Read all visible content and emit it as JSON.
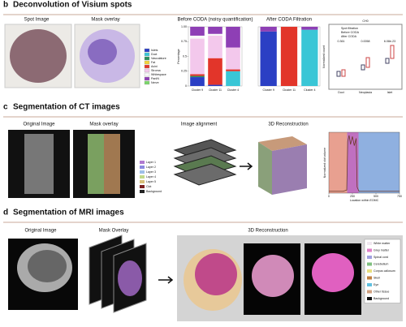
{
  "panels": [
    {
      "letter": "b",
      "title": "Deconvolution of Visium spots",
      "images": [
        "Spot Image",
        "Mask overlay"
      ]
    },
    {
      "letter": "c",
      "title": "Segmentation of CT images",
      "images": [
        "Original Image",
        "Mask overlay",
        "Image alignment",
        "3D Reconstruction"
      ],
      "legend": [
        "Layer 1",
        "Layer 2",
        "Layer 3",
        "Layer 4",
        "Layer 5",
        "Clot",
        "Background"
      ]
    },
    {
      "letter": "d",
      "title": "Segmentation of MRI images",
      "images": [
        "Original Image",
        "Mask Overlay",
        "3D Reconstruction"
      ],
      "legend": [
        "White matter",
        "Grey matter",
        "Spinal cord",
        "Cerebellum",
        "Corpus callosum",
        "Skull",
        "Eye",
        "Other tissue",
        "Background"
      ]
    }
  ],
  "boxplot": {
    "title": "CH0",
    "legend": [
      "Spot filtration",
      "Before CODA",
      "After CODA"
    ],
    "ylabel": "Normalized count",
    "categories": [
      "Duct",
      "Neoplasia",
      "Islet"
    ],
    "pvalues": [
      "0.361",
      "0.0058",
      "6.08e-23"
    ]
  },
  "chart_data": [
    {
      "type": "bar",
      "title": "Before CODA (noisy quantification)",
      "ylabel": "Percentage",
      "categories": [
        "Cluster 9",
        "Cluster 11",
        "Cluster 4"
      ],
      "ylim": [
        0,
        1
      ],
      "yticks": [
        0,
        0.25,
        {
          "value": 0.5,
          "label": "0.5"
        },
        0.75,
        {
          "value": 1,
          "label": "1.00"
        }
      ],
      "series": [
        {
          "name": "Islets",
          "color": "#2b3fc4",
          "values": [
            0.15,
            0.02,
            0
          ]
        },
        {
          "name": "Duct",
          "color": "#39c6d6",
          "values": [
            0,
            0,
            0.25
          ]
        },
        {
          "name": "Vasculature",
          "color": "#2a8f5a",
          "values": [
            0.02,
            0,
            0
          ]
        },
        {
          "name": "Fat",
          "color": "#f2d33a",
          "values": [
            0,
            0,
            0
          ]
        },
        {
          "name": "Acini",
          "color": "#e2352a",
          "values": [
            0.03,
            0.45,
            0.03
          ]
        },
        {
          "name": "Stroma",
          "color": "#f3c8ec",
          "values": [
            0.6,
            0.38,
            0.37
          ]
        },
        {
          "name": "Whitespace",
          "color": "#f8f8f8",
          "values": [
            0.05,
            0.03,
            0
          ]
        },
        {
          "name": "PanIN",
          "color": "#8e3fb5",
          "values": [
            0.15,
            0.12,
            0.35
          ]
        },
        {
          "name": "Nerve",
          "color": "#7bd66a",
          "values": [
            0,
            0,
            0
          ]
        }
      ]
    },
    {
      "type": "bar",
      "title": "After CODA Filtration",
      "categories": [
        "Cluster 9",
        "Cluster 11",
        "Cluster 4"
      ],
      "ylim": [
        0,
        1
      ],
      "series": [
        {
          "name": "Islets",
          "color": "#2b3fc4",
          "values": [
            0.92,
            0,
            0
          ]
        },
        {
          "name": "Duct",
          "color": "#39c6d6",
          "values": [
            0,
            0,
            0.95
          ]
        },
        {
          "name": "Acini",
          "color": "#e2352a",
          "values": [
            0,
            1,
            0
          ]
        },
        {
          "name": "PanIN",
          "color": "#8e3fb5",
          "values": [
            0.08,
            0,
            0.05
          ]
        }
      ]
    },
    {
      "type": "line",
      "xlabel": "Location within EOMC",
      "ylabel": "Normalized clot volume",
      "xlim": [
        0,
        750
      ],
      "ylim": [
        0,
        1
      ],
      "xticks": [
        0,
        250,
        500,
        750
      ],
      "color": "#6b3a2a",
      "x": [
        0,
        150,
        190,
        200,
        215,
        230,
        250,
        270,
        290,
        300,
        320,
        400,
        500,
        600,
        750
      ],
      "values": [
        0.03,
        0.03,
        0.05,
        0.85,
        0.95,
        0.8,
        0.93,
        0.78,
        0.9,
        0.1,
        0.03,
        0.03,
        0.03,
        0.03,
        0.03
      ]
    }
  ]
}
